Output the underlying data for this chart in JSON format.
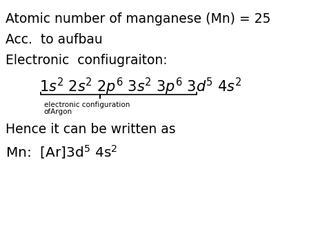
{
  "bg_color": "#ffffff",
  "line1": "Atomic number of manganese (Mn) = 25",
  "line2": "Acc.  to aufbau",
  "line3": "Electronic  confiugraiton:",
  "brace_label1": "electronic configuration",
  "brace_label2": "ofArgon",
  "line5": "Hence it can be written as",
  "figsize": [
    4.74,
    3.26
  ],
  "dpi": 100
}
